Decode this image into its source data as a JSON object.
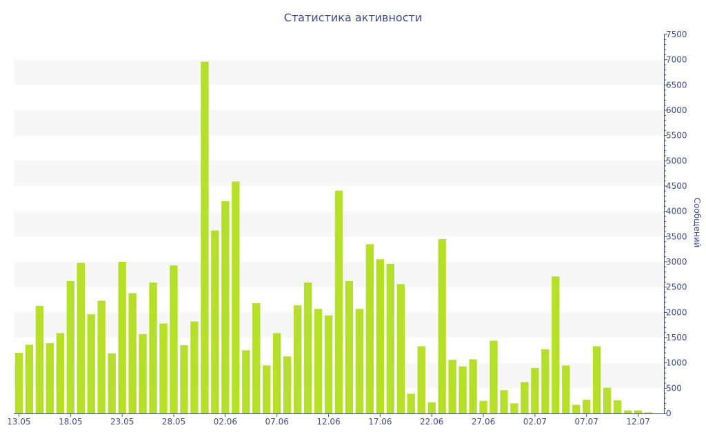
{
  "chart_data": {
    "type": "bar",
    "title": "Статистика активности",
    "ylabel": "Сообщений",
    "ylim": [
      0,
      7500
    ],
    "y_ticks": [
      0,
      500,
      1000,
      1500,
      2000,
      2500,
      3000,
      3500,
      4000,
      4500,
      5000,
      5500,
      6000,
      6500,
      7000,
      7500
    ],
    "x_tick_labels": [
      "13.05",
      "18.05",
      "23.05",
      "28.05",
      "02.06",
      "07.06",
      "12.06",
      "17.06",
      "22.06",
      "27.06",
      "02.07",
      "07.07",
      "12.07"
    ],
    "y_axis_position": "right",
    "grid": "alternating horizontal bands",
    "categories": [
      "13.05",
      "14.05",
      "15.05",
      "16.05",
      "17.05",
      "18.05",
      "19.05",
      "20.05",
      "21.05",
      "22.05",
      "23.05",
      "24.05",
      "25.05",
      "26.05",
      "27.05",
      "28.05",
      "29.05",
      "30.05",
      "31.05",
      "01.06",
      "02.06",
      "03.06",
      "04.06",
      "05.06",
      "06.06",
      "07.06",
      "08.06",
      "09.06",
      "10.06",
      "11.06",
      "12.06",
      "13.06",
      "14.06",
      "15.06",
      "16.06",
      "17.06",
      "18.06",
      "19.06",
      "20.06",
      "21.06",
      "22.06",
      "23.06",
      "24.06",
      "25.06",
      "26.06",
      "27.06",
      "28.06",
      "29.06",
      "30.06",
      "01.07",
      "02.07",
      "03.07",
      "04.07",
      "05.07",
      "06.07",
      "07.07",
      "08.07",
      "09.07",
      "10.07",
      "11.07",
      "12.07",
      "13.07",
      "14.07"
    ],
    "values": [
      1200,
      1360,
      2130,
      1390,
      1590,
      2620,
      2980,
      1960,
      2230,
      1190,
      3000,
      2380,
      1570,
      2590,
      1780,
      2930,
      1350,
      1820,
      6960,
      3620,
      4200,
      4590,
      1250,
      2180,
      950,
      1590,
      1130,
      2140,
      2590,
      2070,
      1940,
      4410,
      2620,
      2070,
      3350,
      3050,
      2960,
      2560,
      390,
      1330,
      220,
      3450,
      1060,
      930,
      1070,
      250,
      1440,
      460,
      200,
      620,
      900,
      1270,
      2710,
      950,
      170,
      270,
      1330,
      510,
      260,
      60,
      60,
      20,
      0
    ],
    "colors": {
      "bar": "#b5df2a",
      "band": "#f7f7f7",
      "axis": "#3e4c8a",
      "text": "#3e4c8a"
    }
  }
}
